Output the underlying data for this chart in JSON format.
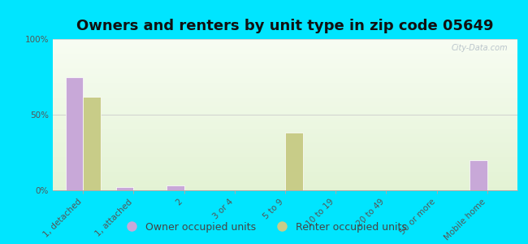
{
  "title": "Owners and renters by unit type in zip code 05649",
  "categories": [
    "1, detached",
    "1, attached",
    "2",
    "3 or 4",
    "5 to 9",
    "10 to 19",
    "20 to 49",
    "50 or more",
    "Mobile home"
  ],
  "owner_values": [
    75,
    2,
    3,
    0,
    0,
    0,
    0,
    0,
    20
  ],
  "renter_values": [
    62,
    0,
    0,
    0,
    38,
    0,
    0,
    0,
    0
  ],
  "owner_color": "#c8a8d8",
  "renter_color": "#c8cc88",
  "outer_bg": "#00e5ff",
  "ylim": [
    0,
    100
  ],
  "yticks": [
    0,
    50,
    100
  ],
  "ytick_labels": [
    "0%",
    "50%",
    "100%"
  ],
  "bar_width": 0.35,
  "legend_owner": "Owner occupied units",
  "legend_renter": "Renter occupied units",
  "title_fontsize": 13,
  "tick_fontsize": 7.5,
  "legend_fontsize": 9
}
